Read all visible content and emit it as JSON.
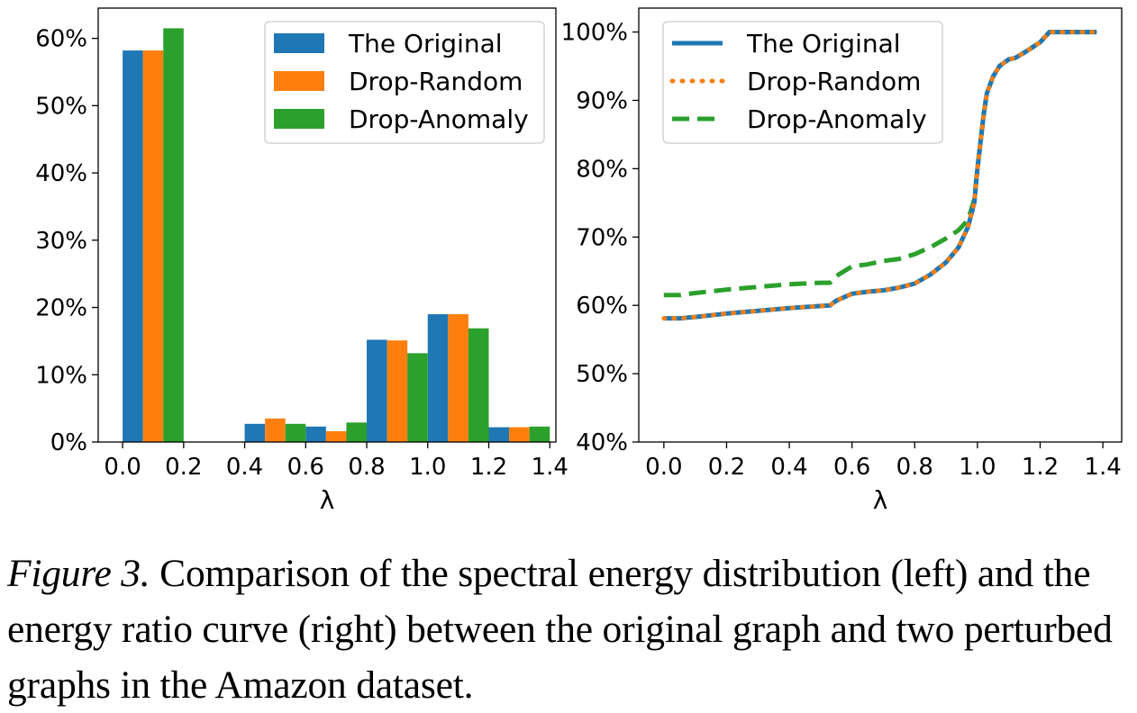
{
  "colors": {
    "original": "#1f77b4",
    "random": "#ff7f0e",
    "anomaly": "#2ca02c"
  },
  "chart_data": [
    {
      "type": "bar",
      "xlabel": "λ",
      "ylabel": "",
      "xlim": [
        -0.08,
        1.42
      ],
      "ylim": [
        0,
        0.645
      ],
      "x_ticks": [
        "0.0",
        "0.2",
        "0.4",
        "0.6",
        "0.8",
        "1.0",
        "1.2",
        "1.4"
      ],
      "y_ticks": [
        "0%",
        "10%",
        "20%",
        "30%",
        "40%",
        "50%",
        "60%"
      ],
      "bin_centers": [
        0.1,
        0.5,
        0.7,
        0.9,
        1.1,
        1.3
      ],
      "series": [
        {
          "name": "The Original",
          "values": [
            0.582,
            0.027,
            0.023,
            0.152,
            0.19,
            0.022
          ]
        },
        {
          "name": "Drop-Random",
          "values": [
            0.582,
            0.035,
            0.016,
            0.151,
            0.19,
            0.022
          ]
        },
        {
          "name": "Drop-Anomaly",
          "values": [
            0.615,
            0.027,
            0.029,
            0.132,
            0.169,
            0.023
          ]
        }
      ],
      "legend": "top-right",
      "grid": false
    },
    {
      "type": "line",
      "xlabel": "λ",
      "ylabel": "",
      "xlim": [
        -0.08,
        1.46
      ],
      "ylim": [
        0.4,
        1.035
      ],
      "x_ticks": [
        "0.0",
        "0.2",
        "0.4",
        "0.6",
        "0.8",
        "1.0",
        "1.2",
        "1.4"
      ],
      "y_ticks": [
        "40%",
        "50%",
        "60%",
        "70%",
        "80%",
        "90%",
        "100%"
      ],
      "series": [
        {
          "name": "The Original",
          "x": [
            0,
            0.05,
            0.1,
            0.2,
            0.3,
            0.4,
            0.5,
            0.53,
            0.55,
            0.6,
            0.65,
            0.7,
            0.75,
            0.8,
            0.85,
            0.9,
            0.94,
            0.97,
            0.99,
            1.0,
            1.01,
            1.02,
            1.03,
            1.05,
            1.07,
            1.1,
            1.12,
            1.15,
            1.2,
            1.23,
            1.3,
            1.38
          ],
          "y": [
            0.581,
            0.581,
            0.583,
            0.588,
            0.592,
            0.596,
            0.599,
            0.6,
            0.607,
            0.617,
            0.62,
            0.622,
            0.626,
            0.632,
            0.645,
            0.663,
            0.685,
            0.715,
            0.75,
            0.8,
            0.84,
            0.88,
            0.91,
            0.935,
            0.95,
            0.96,
            0.962,
            0.97,
            0.985,
            1.0,
            1.0,
            1.0
          ]
        },
        {
          "name": "Drop-Random",
          "x": [
            0,
            0.05,
            0.1,
            0.2,
            0.3,
            0.4,
            0.5,
            0.53,
            0.55,
            0.6,
            0.65,
            0.7,
            0.75,
            0.8,
            0.85,
            0.9,
            0.94,
            0.97,
            0.99,
            1.0,
            1.01,
            1.02,
            1.03,
            1.05,
            1.07,
            1.1,
            1.12,
            1.15,
            1.2,
            1.23,
            1.3,
            1.38
          ],
          "y": [
            0.581,
            0.581,
            0.583,
            0.588,
            0.592,
            0.596,
            0.599,
            0.6,
            0.607,
            0.617,
            0.62,
            0.622,
            0.626,
            0.632,
            0.645,
            0.663,
            0.685,
            0.715,
            0.75,
            0.8,
            0.84,
            0.88,
            0.91,
            0.935,
            0.95,
            0.96,
            0.962,
            0.97,
            0.985,
            1.0,
            1.0,
            1.0
          ]
        },
        {
          "name": "Drop-Anomaly",
          "x": [
            0,
            0.05,
            0.1,
            0.2,
            0.3,
            0.4,
            0.5,
            0.53,
            0.55,
            0.6,
            0.65,
            0.7,
            0.75,
            0.8,
            0.85,
            0.9,
            0.94,
            0.97,
            0.99,
            1.0,
            1.01,
            1.02,
            1.03,
            1.05,
            1.07,
            1.1,
            1.12,
            1.15,
            1.2,
            1.23,
            1.3,
            1.38
          ],
          "y": [
            0.615,
            0.615,
            0.618,
            0.623,
            0.627,
            0.631,
            0.633,
            0.633,
            0.643,
            0.657,
            0.66,
            0.665,
            0.668,
            0.675,
            0.685,
            0.698,
            0.71,
            0.725,
            0.755,
            0.8,
            0.84,
            0.88,
            0.91,
            0.935,
            0.95,
            0.96,
            0.962,
            0.97,
            0.985,
            1.0,
            1.0,
            1.0
          ]
        }
      ],
      "legend": "top-left",
      "grid": false
    }
  ],
  "caption": {
    "label": "Figure 3.",
    "text": "Comparison of the spectral energy distribution (left) and the energy ratio curve (right) between the original graph and two perturbed graphs in the Amazon dataset."
  }
}
